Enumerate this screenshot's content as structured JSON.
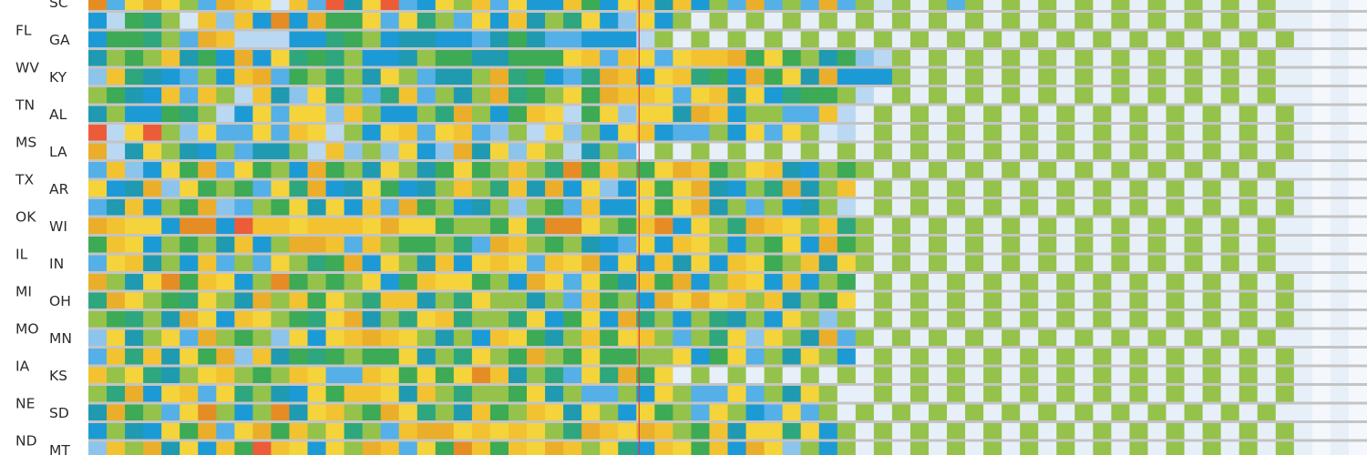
{
  "chart_data": {
    "type": "heatmap",
    "rows": [
      "SC",
      "FL",
      "GA",
      "WV",
      "KY",
      "TN",
      "AL",
      "MS",
      "LA",
      "TX",
      "AR",
      "OK",
      "WI",
      "IL",
      "IN",
      "MI",
      "OH",
      "MO",
      "MN",
      "IA",
      "KS",
      "NE",
      "SD",
      "ND",
      "MT"
    ],
    "num_columns": 70,
    "data_columns": 31,
    "marker_column": 30,
    "colors": {
      "background": "#ffffff",
      "separator": "#c4c4c4",
      "marker": "#d63a3a",
      "label": "#2b2b2b"
    },
    "palette": [
      "#f4f7fc",
      "#e7eff9",
      "#d5e6f7",
      "#bbd8f2",
      "#8cc4ec",
      "#54b0e6",
      "#1c9ad6",
      "#1f9ab0",
      "#2ea67e",
      "#3daa55",
      "#94c24a",
      "#f4d43a",
      "#f2c230",
      "#eaae2a",
      "#e68c24",
      "#ec5c38"
    ],
    "cells": [
      "E5BDBA5DCB2C5F7BF56BAC5B66C96BC7C6A5D5A5D5A2A1A5A1A1A1A1A1A1A1A1A1",
      "6398A2C4C6E6D99B5B8A5B6C7A8B64B6A1A1A1A1A1A1A1A1A1A1A1A1A1A1A1A1A1",
      "6998A5DC3336689A677665797556663A1A1A1A1A1A1A1A1A1A1A1A1A1A1A1A1A1A",
      "7A9AC796D6B898A667A9977999BC5CB5BCCD9B9A7943A1A1A1A1A1A1A1A1A1A1A1",
      "4C8765A6CD59A8A7BA577AD89658DC6BC896D9B7D666A1A1A1A1A1A1A1A1A1A1A1",
      "A976C5CA3C74B8A58C5A7AD89AB9DCCB5BC7B6899A31A1A1A1A1A1A1A1A1A1A1A1",
      "7A6698A36B5BB4CA66A8DA69CB39B4BB7DC6AA55C31A1A1A1A1A1A1A1A1A1A1A1A",
      "F3BFA4B55B5CB3A6BC5BC54A3B4A6BC655A6B5BA231A1A1A1A1A1A1A1A1A1A1A1A",
      "D37BA76A577A3C4A4B64D7B4BA37A51A1A1A1A1A1A1A1A1A1A1A1A1A1A1A1A1A1A",
      "5C46B9D5B9A6D9A7BA79B9ACA8E9CA9BDC9ABC76A9A1A1A1A1A1A1A1A1A1A1A1A1",
      "B67D4B9A95B8D67B967ACA8C7D6B46B9BD76A8D7AC1A1A1A1A1A1A1A1A1A1A1A1A",
      "57C6A9D45A9B7B6C5D9A67A4A95C66B9BD7A5A67A31A1A1A1A1A1A1A1A1A1A1A1A",
      "DCBB6EE6FCCBCCCBDBB9AA9B8EEBA9CE6BA8DCBAC8A1A1A1A1A1A1A1A1A1A1A1A1",
      "9CB6A9A7C6ADDC5CA99A85DCA9A765B6CBA6A9B6D9A1A1A1A1A1A1A1A1A1A1A1A1",
      "5BC7A6C5A5BA89D6BA7C6BCB5CBD6B6C7B6CB9AC7BA1A1A1A1A1A1A1A1A1A1A1A1",
      "DA7BE9CB6AE9A9AB69CBB9A6DB5B97C9D6ACB6C6A91A1A1A1A1A1A1A1A1A1A1A1A",
      "8DBA98BA7DAC9BA8CC7A8BAA7A5C9A6DBDBCAC7A9B1A1A1A1A1A1A1A1A1A1A1A1A",
      "A98A7DB6CBA98BD7A8BC8AA8B69B6D8A6A87A6BA4A1A1A1A1A1A1A1A1A1A1A1A1A",
      "4B7AB5DA9A4B6BCDCBA7A6CB97AC9BCA5A8B4BA7D5A1A1A1A1A1A1A1A1A1A1A1A1",
      "5C8C7B9D4C7989A99B7A8BA9DA9B99AAB69B5A7BA61A1A1A1A1A1A1A1A1A1A1A1A",
      "CAB87ABCA9ACB55CB9B9BEC7A85B8D9B1A1A1A1A1A1A1A1A1A1A1A1A1A1A1A1A1A",
      "A8D6BC5B8A76B9CCB7CA8AA9B7A55A6BA55B5A7BA11A1A1A1A1A1A1A1A1A1A1A1A",
      "7D9A5BEA6AE7BCA9DB8A7C9ACB7BA6B9A5BA65B5A1A1A1A1A1A1A1A1A1A1A1A1A1",
      "6A76B9D5BD9CAB8A5CDDBCBCBA8DCBDCA9C7BB8B6A1A1A1A1A1A1A1A1A1A1A1A1A",
      "4CAD7B6C9FCB6BADC5B9EC9CBDCAB86CB9C6DB4A6A1A1A1A1A1A1A1A1A1A1A1A1A"
    ]
  }
}
